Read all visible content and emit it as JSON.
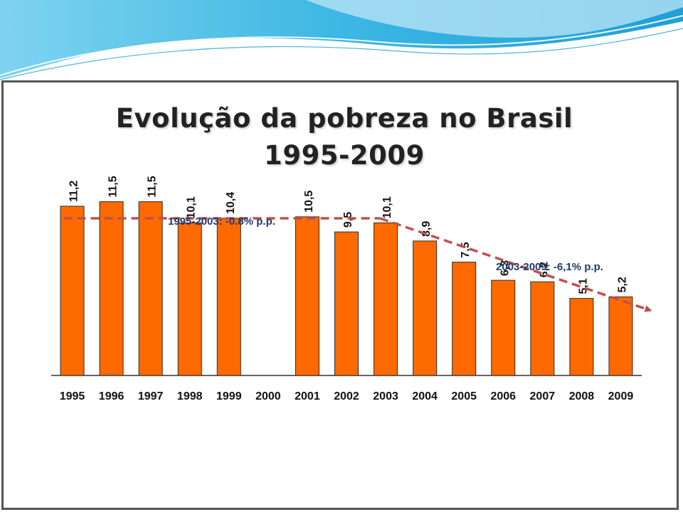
{
  "slide": {
    "title_line1": "Evolução da pobreza no Brasil",
    "title_line2": "1995-2009"
  },
  "colors": {
    "bar": "#ff6a00",
    "bar_stroke": "#2a2a2a",
    "trend": "#c0504d",
    "annotation_text": "#1f3a68",
    "wave_dark": "#1f9fd8",
    "wave_light": "#bfe7f5"
  },
  "chart_data": {
    "type": "bar",
    "categories": [
      "1995",
      "1996",
      "1997",
      "1998",
      "1999",
      "2000",
      "2001",
      "2002",
      "2003",
      "2004",
      "2005",
      "2006",
      "2007",
      "2008",
      "2009"
    ],
    "values": [
      11.2,
      11.5,
      11.5,
      10.1,
      10.4,
      null,
      10.5,
      9.5,
      10.1,
      8.9,
      7.5,
      6.3,
      6.2,
      5.1,
      5.2
    ],
    "value_labels": [
      "11,2",
      "11,5",
      "11,5",
      "10,1",
      "10,4",
      "",
      "10,5",
      "9,5",
      "10,1",
      "8,9",
      "7,5",
      "6,3",
      "6,2",
      "5,1",
      "5,2"
    ],
    "ylim": [
      0,
      12
    ],
    "grid": false,
    "annotations": [
      {
        "text": "1995-2003: -0.8% p.p.",
        "from_category": "1995",
        "to_category": "2003",
        "level": 10.4
      },
      {
        "text": "2003-2009: -6,1% p.p.",
        "from_category": "2003",
        "to_category": "2009",
        "level_start": 10.4,
        "level_end": 4.3
      }
    ]
  }
}
